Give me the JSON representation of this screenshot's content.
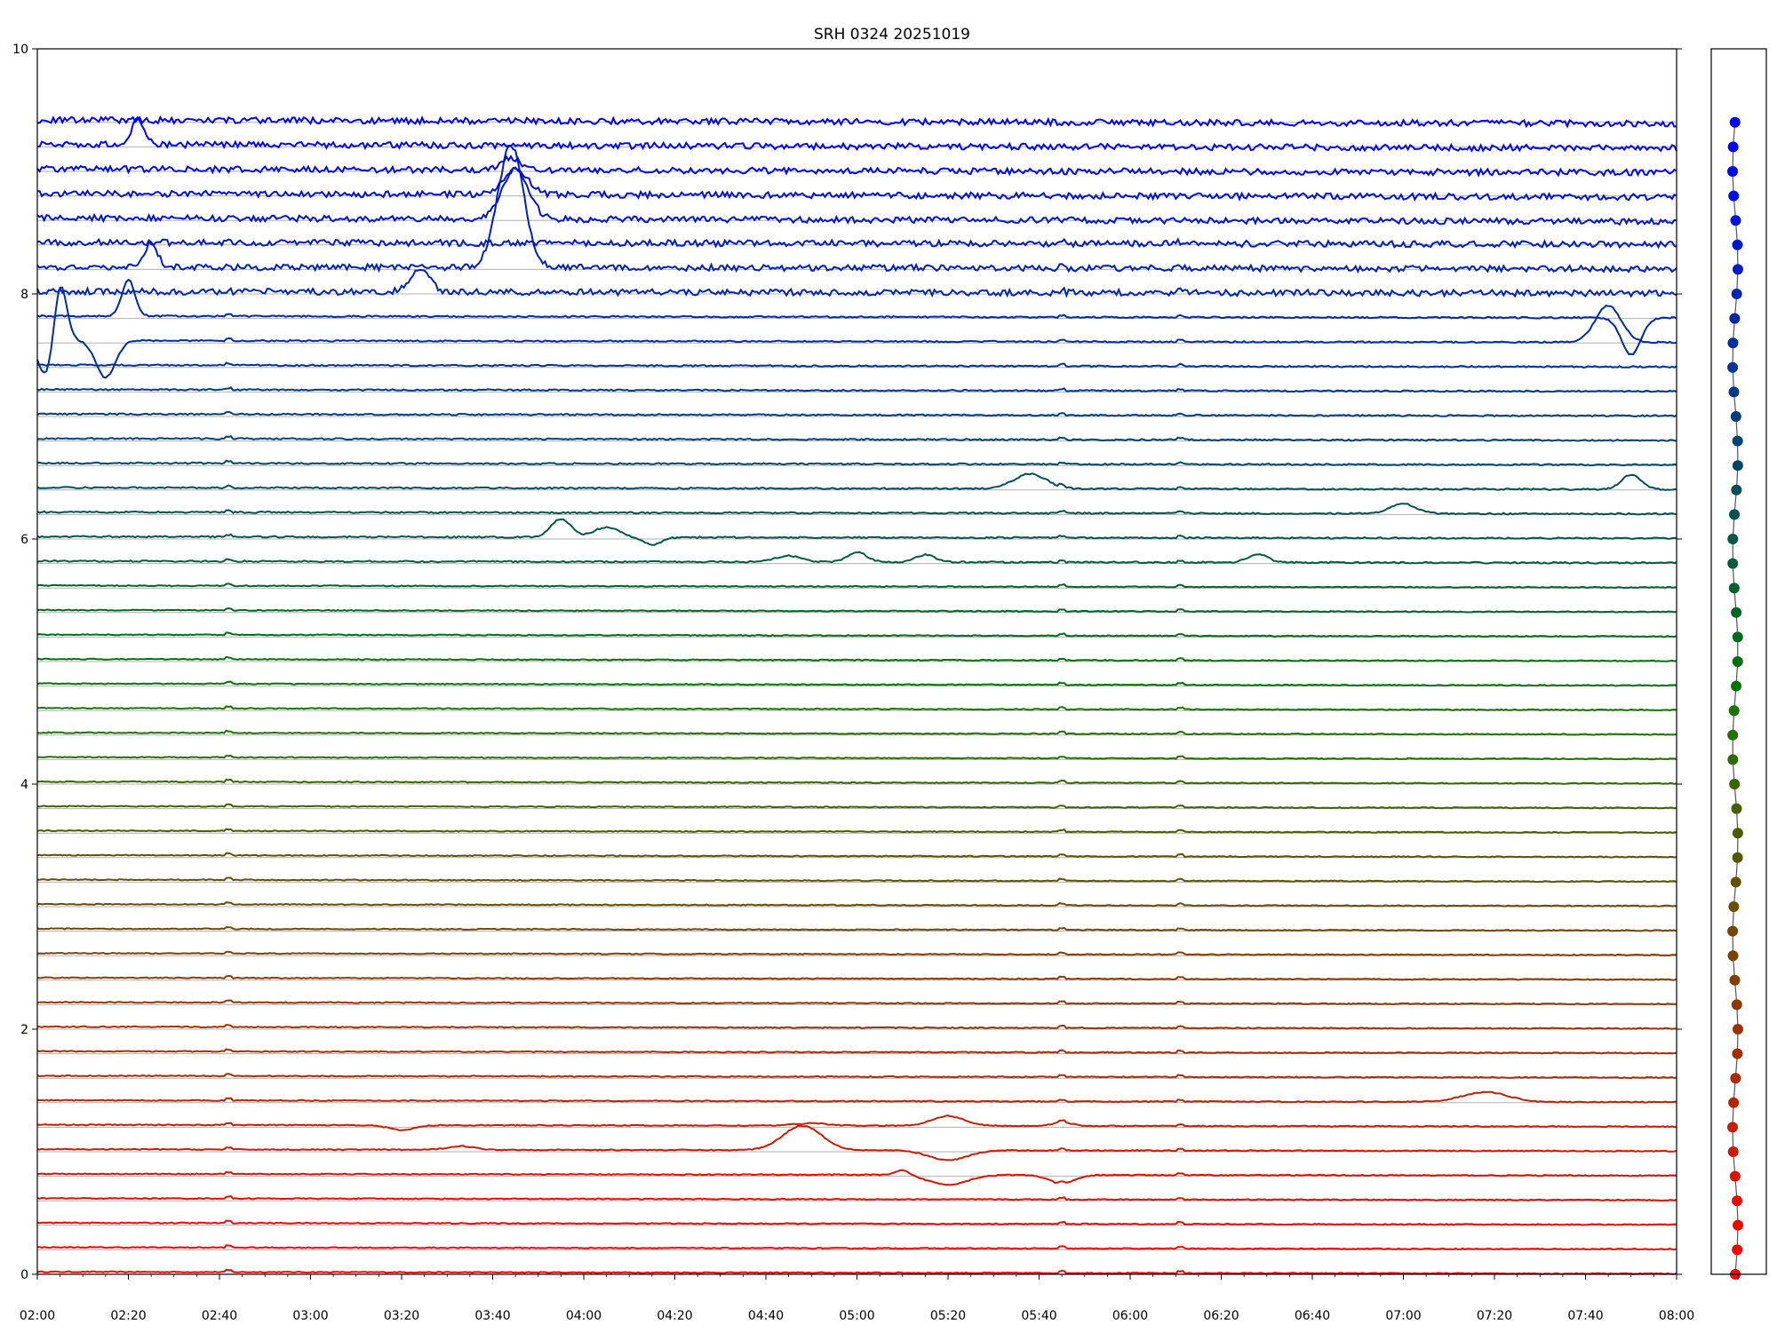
{
  "chart_data": {
    "type": "line",
    "title": "SRH 0324 20251019",
    "xlabel": "",
    "ylabel": "",
    "xlim": [
      "02:00",
      "08:00"
    ],
    "ylim": [
      0,
      10
    ],
    "x_tick_labels": [
      "02:00",
      "02:20",
      "02:40",
      "03:00",
      "03:20",
      "03:40",
      "04:00",
      "04:20",
      "04:40",
      "05:00",
      "05:20",
      "05:40",
      "06:00",
      "06:20",
      "06:40",
      "07:00",
      "07:20",
      "07:40",
      "08:00"
    ],
    "y_tick_labels": [
      "0",
      "2",
      "4",
      "6",
      "8",
      "10"
    ],
    "grid": "horizontal lines at each trace baseline",
    "legend": "none",
    "series_count": 48,
    "baseline_spacing": 0.2,
    "color_start": "#ff0000",
    "color_end": "#0000ff",
    "series": [
      {
        "baseline": 0.0,
        "level": 0.0
      },
      {
        "baseline": 0.2,
        "level": 0.2
      },
      {
        "baseline": 0.4,
        "level": 0.4
      },
      {
        "baseline": 0.6,
        "level": 0.6
      },
      {
        "baseline": 0.8,
        "level": 0.8,
        "events": [
          [
            "05:10",
            0.04,
            4
          ],
          [
            "05:20",
            -0.08,
            12
          ],
          [
            "05:45",
            -0.07,
            8
          ]
        ]
      },
      {
        "baseline": 1.0,
        "level": 1.0,
        "events": [
          [
            "03:33",
            0.03,
            8
          ],
          [
            "04:48",
            0.2,
            12
          ],
          [
            "05:20",
            -0.08,
            12
          ],
          [
            "07:18",
            0.0,
            6
          ]
        ]
      },
      {
        "baseline": 1.2,
        "level": 1.2,
        "events": [
          [
            "03:20",
            -0.04,
            8
          ],
          [
            "04:50",
            0.02,
            10
          ],
          [
            "05:20",
            0.08,
            10
          ],
          [
            "05:45",
            0.03,
            6
          ]
        ]
      },
      {
        "baseline": 1.4,
        "level": 1.4,
        "events": [
          [
            "07:18",
            0.08,
            14
          ]
        ]
      },
      {
        "baseline": 1.6,
        "level": 1.6
      },
      {
        "baseline": 1.8,
        "level": 1.8
      },
      {
        "baseline": 2.0,
        "level": 2.0
      },
      {
        "baseline": 2.2,
        "level": 2.2
      },
      {
        "baseline": 2.4,
        "level": 2.4
      },
      {
        "baseline": 2.6,
        "level": 2.6
      },
      {
        "baseline": 2.8,
        "level": 2.8
      },
      {
        "baseline": 3.0,
        "level": 3.0
      },
      {
        "baseline": 3.2,
        "level": 3.2
      },
      {
        "baseline": 3.4,
        "level": 3.4
      },
      {
        "baseline": 3.6,
        "level": 3.6
      },
      {
        "baseline": 3.8,
        "level": 3.8
      },
      {
        "baseline": 4.0,
        "level": 4.0
      },
      {
        "baseline": 4.2,
        "level": 4.2
      },
      {
        "baseline": 4.4,
        "level": 4.4
      },
      {
        "baseline": 4.6,
        "level": 4.6
      },
      {
        "baseline": 4.8,
        "level": 4.8
      },
      {
        "baseline": 5.0,
        "level": 5.0
      },
      {
        "baseline": 5.2,
        "level": 5.2
      },
      {
        "baseline": 5.4,
        "level": 5.4
      },
      {
        "baseline": 5.6,
        "level": 5.6
      },
      {
        "baseline": 5.8,
        "level": 5.8,
        "events": [
          [
            "04:45",
            0.05,
            8
          ],
          [
            "05:00",
            0.08,
            6
          ],
          [
            "05:15",
            0.06,
            6
          ],
          [
            "06:28",
            0.07,
            6
          ]
        ]
      },
      {
        "baseline": 6.0,
        "level": 6.0,
        "events": [
          [
            "03:55",
            0.15,
            6
          ],
          [
            "04:05",
            0.08,
            8
          ],
          [
            "04:15",
            -0.06,
            6
          ]
        ]
      },
      {
        "baseline": 6.2,
        "level": 6.2,
        "events": [
          [
            "07:00",
            0.08,
            8
          ]
        ]
      },
      {
        "baseline": 6.4,
        "level": 6.4,
        "events": [
          [
            "05:38",
            0.12,
            10
          ],
          [
            "07:50",
            0.12,
            6
          ]
        ]
      },
      {
        "baseline": 6.6,
        "level": 6.6
      },
      {
        "baseline": 6.8,
        "level": 6.8
      },
      {
        "baseline": 7.0,
        "level": 7.0
      },
      {
        "baseline": 7.2,
        "level": 7.2
      },
      {
        "baseline": 7.4,
        "level": 7.4
      },
      {
        "baseline": 7.6,
        "level": 7.6,
        "events": [
          [
            "02:02",
            -0.3,
            5
          ],
          [
            "02:05",
            0.5,
            4
          ],
          [
            "02:15",
            -0.3,
            6
          ],
          [
            "07:45",
            0.3,
            8
          ]
        ]
      },
      {
        "baseline": 7.8,
        "level": 7.8,
        "events": [
          [
            "02:20",
            0.3,
            4
          ],
          [
            "07:50",
            -0.3,
            6
          ]
        ]
      },
      {
        "baseline": 8.0,
        "level": 8.0,
        "events": [
          [
            "03:24",
            0.2,
            6
          ]
        ]
      },
      {
        "baseline": 8.2,
        "level": 8.2,
        "events": [
          [
            "02:25",
            0.2,
            4
          ],
          [
            "03:44",
            1.0,
            8
          ]
        ]
      },
      {
        "baseline": 8.4,
        "level": 8.4
      },
      {
        "baseline": 8.6,
        "level": 8.6,
        "events": [
          [
            "03:45",
            0.4,
            8
          ]
        ]
      },
      {
        "baseline": 8.8,
        "level": 8.8,
        "events": [
          [
            "03:45",
            0.2,
            8
          ]
        ]
      },
      {
        "baseline": 9.0,
        "level": 9.0,
        "events": [
          [
            "03:44",
            0.1,
            6
          ]
        ]
      },
      {
        "baseline": 9.2,
        "level": 9.2,
        "events": [
          [
            "02:22",
            0.2,
            4
          ]
        ]
      },
      {
        "baseline": 9.4,
        "level": 9.4
      }
    ]
  }
}
